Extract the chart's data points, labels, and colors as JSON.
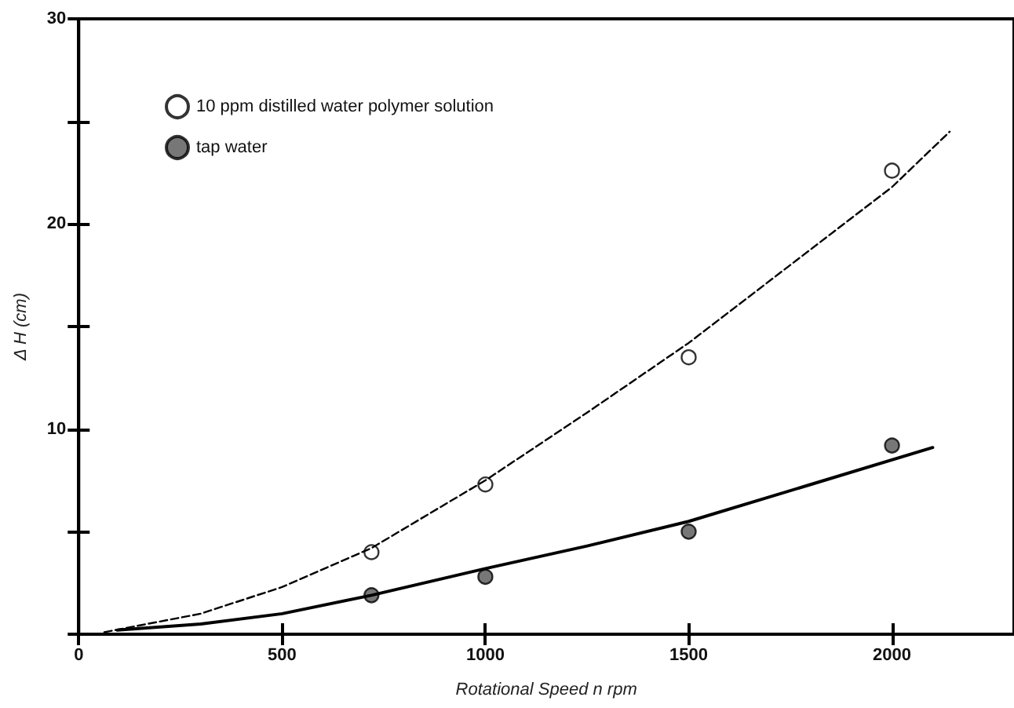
{
  "chart_data": {
    "type": "scatter",
    "xlabel": "Rotational Speed n rpm",
    "ylabel": "Δ H (cm)",
    "xlim": [
      0,
      2300
    ],
    "xticks": [
      0,
      500,
      1000,
      1500,
      2000
    ],
    "ylim": [
      0,
      30
    ],
    "yticks": [
      {
        "value": 0,
        "label": null
      },
      {
        "value": 5,
        "label": null
      },
      10,
      {
        "value": 15,
        "label": null
      },
      20,
      {
        "value": 25,
        "label": null
      },
      30
    ],
    "grid": false,
    "legend": "top left",
    "series": [
      {
        "name": "10 ppm distilled water polymer solution",
        "type": "scatter",
        "marker": "circle",
        "color": "#ffffff",
        "x": [
          720,
          1000,
          1500,
          2000
        ],
        "values": [
          4.0,
          7.3,
          13.5,
          22.6
        ]
      },
      {
        "name": "tap water",
        "type": "scatter",
        "marker": "circle",
        "color": "#555555",
        "x": [
          720,
          1000,
          1500,
          2000
        ],
        "values": [
          1.9,
          2.8,
          5.0,
          9.2
        ]
      },
      {
        "type": "line",
        "marker": "none",
        "line_style": "dashed",
        "color": "#000000",
        "x": [
          63,
          300,
          500,
          720,
          1000,
          1250,
          1500,
          1750,
          2000,
          2142
        ],
        "values": [
          0.1,
          1.0,
          2.3,
          4.2,
          7.5,
          10.8,
          14.2,
          18.0,
          21.8,
          24.5
        ]
      },
      {
        "type": "line",
        "marker": "none",
        "line_style": "solid",
        "color": "#000000",
        "x": [
          95,
          300,
          500,
          720,
          1000,
          1250,
          1500,
          1800,
          2100
        ],
        "values": [
          0.2,
          0.5,
          1.0,
          1.9,
          3.2,
          4.3,
          5.5,
          7.3,
          9.1
        ]
      }
    ]
  }
}
